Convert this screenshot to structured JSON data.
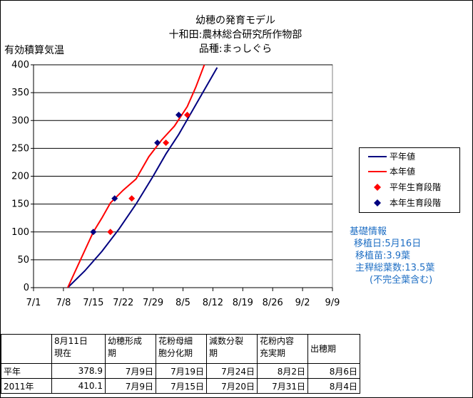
{
  "title_lines": [
    "幼穂の発育モデル",
    "十和田:農林総合研究所作物部",
    "品種:まっしぐら"
  ],
  "chart_data": {
    "type": "line",
    "ylabel": "有効積算気温",
    "ylim": [
      0,
      400
    ],
    "yticks": [
      0,
      50,
      100,
      150,
      200,
      250,
      300,
      350,
      400
    ],
    "xticks": [
      "7/1",
      "7/8",
      "7/15",
      "7/22",
      "7/29",
      "8/5",
      "8/12",
      "8/19",
      "8/26",
      "9/2",
      "9/9"
    ],
    "xlim_days": [
      0,
      70
    ],
    "grid": "horizontal",
    "legend_position": "right",
    "series": [
      {
        "name": "平年値",
        "kind": "line",
        "color": "#000080",
        "points": [
          [
            8,
            0
          ],
          [
            12,
            30
          ],
          [
            16,
            65
          ],
          [
            20,
            105
          ],
          [
            24,
            150
          ],
          [
            28,
            200
          ],
          [
            31,
            240
          ],
          [
            34,
            275
          ],
          [
            37,
            315
          ],
          [
            40,
            355
          ],
          [
            43,
            395
          ]
        ]
      },
      {
        "name": "本年値",
        "kind": "line",
        "color": "#ff0000",
        "points": [
          [
            8,
            0
          ],
          [
            11,
            50
          ],
          [
            14,
            100
          ],
          [
            16,
            125
          ],
          [
            18,
            152
          ],
          [
            21,
            175
          ],
          [
            24,
            195
          ],
          [
            27,
            235
          ],
          [
            30,
            265
          ],
          [
            33,
            290
          ],
          [
            36,
            325
          ],
          [
            38,
            360
          ],
          [
            40,
            400
          ]
        ]
      },
      {
        "name": "平年生育段階",
        "kind": "scatter",
        "color": "#ff0000",
        "marker": "diamond",
        "points": [
          [
            18,
            100
          ],
          [
            23,
            160
          ],
          [
            31,
            260
          ],
          [
            36,
            310
          ]
        ]
      },
      {
        "name": "本年生育段階",
        "kind": "scatter",
        "color": "#000080",
        "marker": "diamond",
        "points": [
          [
            14,
            100
          ],
          [
            19,
            160
          ],
          [
            29,
            260
          ],
          [
            34,
            310
          ]
        ]
      }
    ]
  },
  "info": {
    "title": "基礎情報",
    "planting_date": "移植日:5月16日",
    "seedling": "移植苗:3.9葉",
    "leaf_count": "主稈総葉数:13.5葉",
    "leaf_note": "(不完全葉含む)"
  },
  "table": {
    "headers": [
      "",
      "8月11日\n現在",
      "幼穂形成\n期",
      "花粉母細\n胞分化期",
      "減数分裂\n期",
      "花粉内容\n充実期",
      "出穂期"
    ],
    "rows": [
      [
        "平年",
        "378.9",
        "7月9日",
        "7月19日",
        "7月24日",
        "8月2日",
        "8月6日"
      ],
      [
        "2011年",
        "410.1",
        "7月9日",
        "7月15日",
        "7月20日",
        "7月31日",
        "8月4日"
      ]
    ]
  }
}
